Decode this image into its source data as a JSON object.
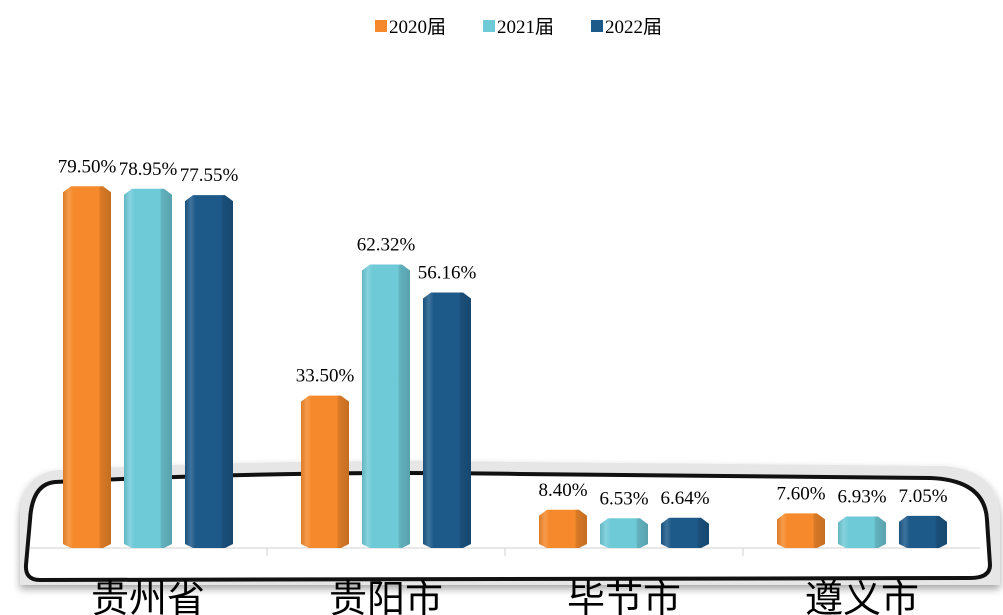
{
  "chart_data": {
    "type": "bar",
    "categories": [
      "贵州省",
      "贵阳市",
      "毕节市",
      "遵义市"
    ],
    "series": [
      {
        "name": "2020届",
        "color": "#f5892b",
        "values": [
          79.5,
          33.5,
          8.4,
          7.6
        ],
        "value_labels": [
          "79.50%",
          "33.50%",
          "8.40%",
          "7.60%"
        ]
      },
      {
        "name": "2021届",
        "color": "#6fcad8",
        "values": [
          78.95,
          62.32,
          6.53,
          6.93
        ],
        "value_labels": [
          "78.95%",
          "62.32%",
          "6.53%",
          "6.93%"
        ]
      },
      {
        "name": "2022届",
        "color": "#1d5a8a",
        "values": [
          77.55,
          56.16,
          6.64,
          7.05
        ],
        "value_labels": [
          "77.55%",
          "56.16%",
          "6.64%",
          "7.05%"
        ]
      }
    ]
  }
}
